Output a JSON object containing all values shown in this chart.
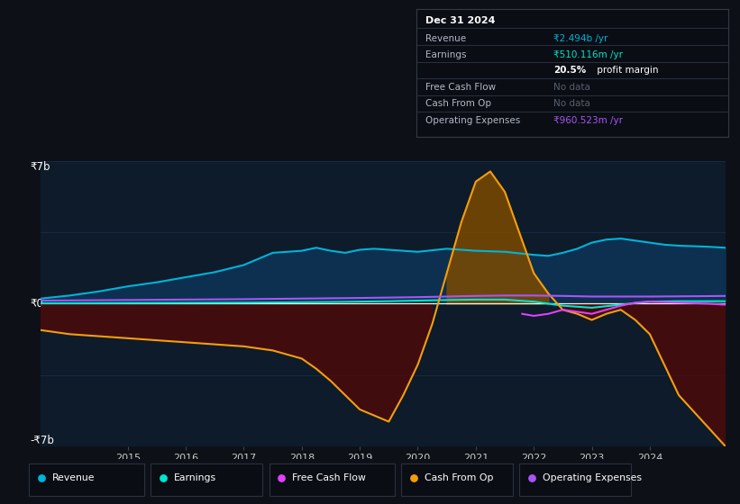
{
  "background_color": "#0d1117",
  "plot_bg_color": "#0d1b2a",
  "x_ticks": [
    2015,
    2016,
    2017,
    2018,
    2019,
    2020,
    2021,
    2022,
    2023,
    2024
  ],
  "legend_items": [
    "Revenue",
    "Earnings",
    "Free Cash Flow",
    "Cash From Op",
    "Operating Expenses"
  ],
  "legend_colors": [
    "#00b4d8",
    "#00e5cc",
    "#e040fb",
    "#f59e0b",
    "#a855f7"
  ],
  "info_box_title": "Dec 31 2024",
  "ylim": [
    -7,
    7
  ],
  "xlim": [
    2013.5,
    2025.3
  ],
  "revenue": {
    "x": [
      2013.5,
      2014.0,
      2014.5,
      2015.0,
      2015.5,
      2016.0,
      2016.5,
      2017.0,
      2017.25,
      2017.5,
      2017.75,
      2018.0,
      2018.25,
      2018.5,
      2018.75,
      2019.0,
      2019.25,
      2019.5,
      2019.75,
      2020.0,
      2020.5,
      2021.0,
      2021.5,
      2022.0,
      2022.25,
      2022.5,
      2022.75,
      2023.0,
      2023.25,
      2023.5,
      2023.75,
      2024.0,
      2024.25,
      2024.5,
      2025.0,
      2025.3
    ],
    "y": [
      0.25,
      0.4,
      0.6,
      0.85,
      1.05,
      1.3,
      1.55,
      1.9,
      2.2,
      2.5,
      2.55,
      2.6,
      2.75,
      2.6,
      2.5,
      2.65,
      2.7,
      2.65,
      2.6,
      2.55,
      2.7,
      2.6,
      2.55,
      2.4,
      2.35,
      2.5,
      2.7,
      3.0,
      3.15,
      3.2,
      3.1,
      3.0,
      2.9,
      2.85,
      2.8,
      2.75
    ],
    "color": "#00b4d8",
    "fill_color": "#0d3050"
  },
  "earnings": {
    "x": [
      2013.5,
      2014.0,
      2015.0,
      2016.0,
      2017.0,
      2017.5,
      2018.0,
      2018.5,
      2019.0,
      2019.5,
      2020.0,
      2020.5,
      2021.0,
      2021.5,
      2022.0,
      2022.5,
      2023.0,
      2023.5,
      2024.0,
      2024.5,
      2025.0,
      2025.3
    ],
    "y": [
      0.02,
      0.02,
      0.03,
      0.04,
      0.05,
      0.06,
      0.07,
      0.08,
      0.1,
      0.12,
      0.15,
      0.18,
      0.2,
      0.2,
      0.1,
      -0.1,
      -0.2,
      -0.05,
      0.1,
      0.12,
      0.12,
      0.12
    ],
    "color": "#00e5cc",
    "fill_color": "#0a3330"
  },
  "cash_from_op": {
    "x": [
      2013.5,
      2014.0,
      2014.5,
      2015.0,
      2015.5,
      2016.0,
      2016.5,
      2017.0,
      2017.5,
      2018.0,
      2018.25,
      2018.5,
      2018.75,
      2019.0,
      2019.25,
      2019.5,
      2019.75,
      2020.0,
      2020.25,
      2020.5,
      2020.75,
      2021.0,
      2021.25,
      2021.5,
      2021.75,
      2022.0,
      2022.25,
      2022.5,
      2022.75,
      2023.0,
      2023.25,
      2023.5,
      2023.75,
      2024.0,
      2024.25,
      2024.5,
      2025.3
    ],
    "y": [
      -1.3,
      -1.5,
      -1.6,
      -1.7,
      -1.8,
      -1.9,
      -2.0,
      -2.1,
      -2.3,
      -2.7,
      -3.2,
      -3.8,
      -4.5,
      -5.2,
      -5.5,
      -5.8,
      -4.5,
      -3.0,
      -1.0,
      1.5,
      4.0,
      6.0,
      6.5,
      5.5,
      3.5,
      1.5,
      0.5,
      -0.3,
      -0.5,
      -0.8,
      -0.5,
      -0.3,
      -0.8,
      -1.5,
      -3.0,
      -4.5,
      -7.0
    ],
    "color": "#f59e0b",
    "fill_pos_color": "#7c4a00",
    "fill_neg_color": "#4a0a0a"
  },
  "free_cash_flow": {
    "x": [
      2021.8,
      2022.0,
      2022.25,
      2022.5,
      2022.75,
      2023.0,
      2023.25,
      2023.5,
      2023.75,
      2024.0,
      2024.5,
      2025.0,
      2025.3
    ],
    "y": [
      -0.5,
      -0.6,
      -0.5,
      -0.3,
      -0.4,
      -0.5,
      -0.3,
      -0.1,
      0.05,
      0.1,
      0.05,
      0.0,
      -0.05
    ],
    "color": "#e040fb"
  },
  "op_expenses": {
    "x": [
      2013.5,
      2015.0,
      2016.0,
      2017.0,
      2018.0,
      2019.0,
      2019.5,
      2020.0,
      2020.5,
      2021.0,
      2021.5,
      2022.0,
      2022.5,
      2023.0,
      2023.5,
      2024.0,
      2024.5,
      2025.0,
      2025.3
    ],
    "y": [
      0.15,
      0.18,
      0.2,
      0.22,
      0.25,
      0.28,
      0.3,
      0.32,
      0.35,
      0.38,
      0.4,
      0.4,
      0.38,
      0.35,
      0.35,
      0.35,
      0.36,
      0.37,
      0.38
    ],
    "color": "#a855f7"
  }
}
